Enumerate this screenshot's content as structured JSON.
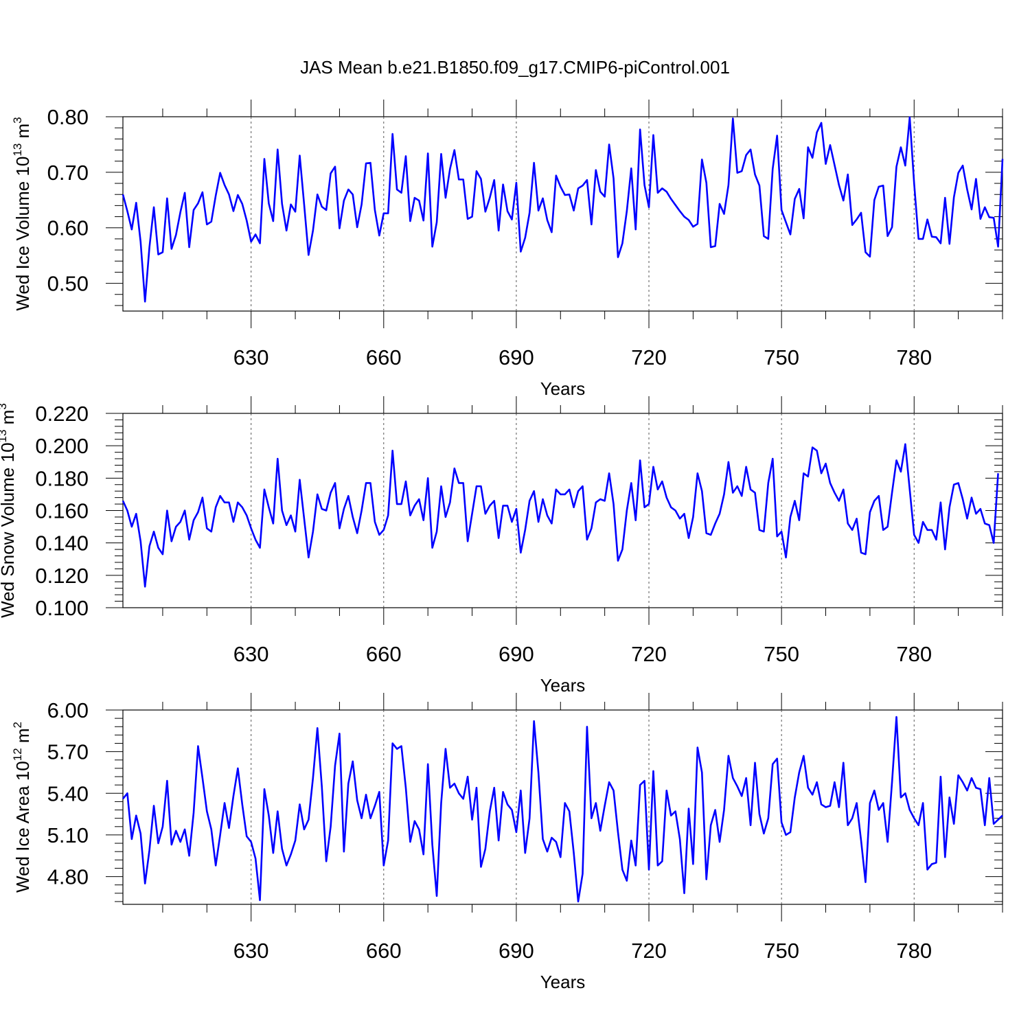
{
  "figure": {
    "title": "JAS Mean b.e21.B1850.f09_g17.CMIP6-piControl.001"
  },
  "chart_data": [
    {
      "type": "line",
      "ylabel": "Wed Ice Volume 10",
      "ylabel_exp": "13",
      "ylabel_unit": " m",
      "ylabel_unit_exp": "3",
      "xlabel": "Years",
      "xlim": [
        601,
        800
      ],
      "ylim": [
        0.45,
        0.8
      ],
      "yticks": [
        "0.50",
        "0.60",
        "0.70",
        "0.80"
      ],
      "ytick_values": [
        0.5,
        0.6,
        0.7,
        0.8
      ],
      "xticks": [
        "630",
        "660",
        "690",
        "720",
        "750",
        "780"
      ],
      "xtick_values": [
        630,
        660,
        690,
        720,
        750,
        780
      ],
      "grid": "vertical dashed lines at major x ticks",
      "line_color": "#0000ff",
      "x_start": 601,
      "values": [
        0.66,
        0.63,
        0.597,
        0.645,
        0.575,
        0.467,
        0.565,
        0.637,
        0.552,
        0.556,
        0.653,
        0.562,
        0.587,
        0.628,
        0.663,
        0.565,
        0.632,
        0.644,
        0.664,
        0.606,
        0.611,
        0.658,
        0.699,
        0.677,
        0.66,
        0.63,
        0.659,
        0.643,
        0.613,
        0.575,
        0.588,
        0.572,
        0.724,
        0.644,
        0.612,
        0.741,
        0.643,
        0.595,
        0.642,
        0.629,
        0.73,
        0.642,
        0.551,
        0.595,
        0.66,
        0.638,
        0.632,
        0.698,
        0.71,
        0.599,
        0.649,
        0.669,
        0.66,
        0.601,
        0.642,
        0.716,
        0.717,
        0.632,
        0.586,
        0.626,
        0.626,
        0.769,
        0.669,
        0.663,
        0.729,
        0.612,
        0.654,
        0.649,
        0.613,
        0.734,
        0.566,
        0.61,
        0.733,
        0.654,
        0.706,
        0.74,
        0.687,
        0.687,
        0.616,
        0.62,
        0.702,
        0.688,
        0.629,
        0.654,
        0.686,
        0.595,
        0.678,
        0.63,
        0.615,
        0.681,
        0.557,
        0.582,
        0.627,
        0.717,
        0.631,
        0.653,
        0.614,
        0.592,
        0.694,
        0.674,
        0.659,
        0.66,
        0.631,
        0.671,
        0.676,
        0.686,
        0.606,
        0.704,
        0.665,
        0.656,
        0.75,
        0.689,
        0.547,
        0.572,
        0.63,
        0.707,
        0.597,
        0.777,
        0.677,
        0.637,
        0.767,
        0.663,
        0.671,
        0.665,
        0.652,
        0.641,
        0.63,
        0.62,
        0.614,
        0.602,
        0.607,
        0.723,
        0.681,
        0.565,
        0.567,
        0.643,
        0.625,
        0.677,
        0.797,
        0.699,
        0.702,
        0.731,
        0.741,
        0.696,
        0.676,
        0.585,
        0.58,
        0.706,
        0.766,
        0.632,
        0.61,
        0.588,
        0.652,
        0.67,
        0.617,
        0.745,
        0.726,
        0.772,
        0.789,
        0.715,
        0.749,
        0.713,
        0.677,
        0.649,
        0.696,
        0.605,
        0.615,
        0.627,
        0.556,
        0.548,
        0.65,
        0.674,
        0.676,
        0.585,
        0.601,
        0.71,
        0.745,
        0.712,
        0.799,
        0.68,
        0.58,
        0.58,
        0.615,
        0.584,
        0.583,
        0.572,
        0.654,
        0.571,
        0.655,
        0.699,
        0.712,
        0.669,
        0.633,
        0.688,
        0.616,
        0.637,
        0.619,
        0.618,
        0.566,
        0.724
      ]
    },
    {
      "type": "line",
      "ylabel": "Wed Snow Volume 10",
      "ylabel_exp": "13",
      "ylabel_unit": " m",
      "ylabel_unit_exp": "3",
      "xlabel": "Years",
      "xlim": [
        601,
        800
      ],
      "ylim": [
        0.1,
        0.22
      ],
      "yticks": [
        "0.100",
        "0.120",
        "0.140",
        "0.160",
        "0.180",
        "0.200",
        "0.220"
      ],
      "ytick_values": [
        0.1,
        0.12,
        0.14,
        0.16,
        0.18,
        0.2,
        0.22
      ],
      "xticks": [
        "630",
        "660",
        "690",
        "720",
        "750",
        "780"
      ],
      "xtick_values": [
        630,
        660,
        690,
        720,
        750,
        780
      ],
      "grid": "vertical dashed lines at major x ticks",
      "line_color": "#0000ff",
      "x_start": 601,
      "values": [
        0.166,
        0.16,
        0.15,
        0.158,
        0.141,
        0.113,
        0.138,
        0.147,
        0.137,
        0.133,
        0.16,
        0.141,
        0.15,
        0.153,
        0.16,
        0.142,
        0.154,
        0.159,
        0.168,
        0.149,
        0.147,
        0.162,
        0.169,
        0.165,
        0.165,
        0.153,
        0.165,
        0.162,
        0.157,
        0.149,
        0.142,
        0.137,
        0.173,
        0.162,
        0.152,
        0.192,
        0.16,
        0.151,
        0.157,
        0.147,
        0.179,
        0.155,
        0.131,
        0.147,
        0.17,
        0.161,
        0.16,
        0.171,
        0.177,
        0.149,
        0.161,
        0.169,
        0.156,
        0.146,
        0.16,
        0.177,
        0.177,
        0.153,
        0.145,
        0.148,
        0.157,
        0.197,
        0.164,
        0.164,
        0.178,
        0.157,
        0.163,
        0.167,
        0.154,
        0.18,
        0.137,
        0.147,
        0.175,
        0.156,
        0.165,
        0.186,
        0.177,
        0.177,
        0.141,
        0.158,
        0.175,
        0.175,
        0.158,
        0.163,
        0.166,
        0.143,
        0.163,
        0.163,
        0.153,
        0.161,
        0.134,
        0.148,
        0.166,
        0.172,
        0.153,
        0.167,
        0.157,
        0.152,
        0.173,
        0.17,
        0.17,
        0.173,
        0.162,
        0.172,
        0.175,
        0.142,
        0.149,
        0.165,
        0.167,
        0.166,
        0.183,
        0.164,
        0.129,
        0.136,
        0.16,
        0.177,
        0.154,
        0.191,
        0.162,
        0.164,
        0.187,
        0.173,
        0.178,
        0.168,
        0.162,
        0.16,
        0.155,
        0.158,
        0.143,
        0.156,
        0.183,
        0.172,
        0.146,
        0.145,
        0.152,
        0.158,
        0.17,
        0.19,
        0.171,
        0.175,
        0.169,
        0.187,
        0.173,
        0.171,
        0.148,
        0.147,
        0.177,
        0.192,
        0.144,
        0.147,
        0.131,
        0.156,
        0.166,
        0.154,
        0.183,
        0.181,
        0.199,
        0.197,
        0.183,
        0.189,
        0.177,
        0.171,
        0.166,
        0.173,
        0.152,
        0.148,
        0.155,
        0.134,
        0.133,
        0.159,
        0.166,
        0.169,
        0.148,
        0.15,
        0.171,
        0.191,
        0.184,
        0.201,
        0.173,
        0.145,
        0.14,
        0.153,
        0.148,
        0.148,
        0.142,
        0.165,
        0.136,
        0.162,
        0.176,
        0.177,
        0.167,
        0.155,
        0.168,
        0.158,
        0.161,
        0.152,
        0.151,
        0.14,
        0.183
      ]
    },
    {
      "type": "line",
      "ylabel": "Wed Ice Area 10",
      "ylabel_exp": "12",
      "ylabel_unit": " m",
      "ylabel_unit_exp": "2",
      "xlabel": "Years",
      "xlim": [
        601,
        800
      ],
      "ylim": [
        4.6,
        6.0
      ],
      "yticks": [
        "4.80",
        "5.10",
        "5.40",
        "5.70",
        "6.00"
      ],
      "ytick_values": [
        4.8,
        5.1,
        5.4,
        5.7,
        6.0
      ],
      "xticks": [
        "630",
        "660",
        "690",
        "720",
        "750",
        "780"
      ],
      "xtick_values": [
        630,
        660,
        690,
        720,
        750,
        780
      ],
      "grid": "vertical dashed lines at major x ticks",
      "line_color": "#0000ff",
      "x_start": 601,
      "values": [
        5.36,
        5.4,
        5.07,
        5.24,
        5.11,
        4.75,
        4.99,
        5.31,
        5.04,
        5.16,
        5.49,
        5.03,
        5.13,
        5.05,
        5.14,
        4.95,
        5.26,
        5.74,
        5.51,
        5.27,
        5.14,
        4.88,
        5.1,
        5.33,
        5.15,
        5.38,
        5.58,
        5.32,
        5.09,
        5.05,
        4.93,
        4.63,
        5.43,
        5.24,
        4.97,
        5.27,
        5.0,
        4.88,
        4.96,
        5.06,
        5.32,
        5.14,
        5.21,
        5.51,
        5.87,
        5.45,
        4.91,
        5.16,
        5.6,
        5.83,
        4.98,
        5.47,
        5.63,
        5.35,
        5.22,
        5.39,
        5.22,
        5.31,
        5.41,
        4.88,
        5.06,
        5.76,
        5.72,
        5.74,
        5.44,
        5.05,
        5.2,
        5.14,
        4.96,
        5.61,
        5.03,
        4.66,
        5.33,
        5.72,
        5.44,
        5.47,
        5.4,
        5.36,
        5.52,
        5.21,
        5.44,
        4.87,
        5.0,
        5.27,
        5.44,
        5.06,
        5.41,
        5.32,
        5.28,
        5.12,
        5.42,
        4.97,
        5.22,
        5.92,
        5.55,
        5.07,
        4.98,
        5.08,
        5.05,
        4.94,
        5.33,
        5.27,
        4.97,
        4.62,
        4.82,
        5.88,
        5.22,
        5.33,
        5.13,
        5.31,
        5.48,
        5.42,
        5.12,
        4.85,
        4.77,
        5.06,
        4.88,
        5.46,
        5.49,
        4.85,
        5.56,
        4.88,
        4.91,
        5.42,
        5.24,
        5.27,
        5.07,
        4.68,
        5.29,
        4.89,
        5.73,
        5.55,
        4.78,
        5.17,
        5.28,
        5.05,
        5.28,
        5.67,
        5.51,
        5.45,
        5.38,
        5.51,
        5.17,
        5.62,
        5.25,
        5.11,
        5.22,
        5.61,
        5.65,
        5.19,
        5.1,
        5.12,
        5.37,
        5.55,
        5.67,
        5.44,
        5.39,
        5.48,
        5.32,
        5.3,
        5.31,
        5.48,
        5.3,
        5.62,
        5.17,
        5.22,
        5.33,
        5.06,
        4.76,
        5.33,
        5.42,
        5.28,
        5.33,
        5.05,
        5.48,
        5.95,
        5.37,
        5.4,
        5.28,
        5.22,
        5.17,
        5.33,
        4.85,
        4.89,
        4.9,
        5.52,
        4.94,
        5.37,
        5.18,
        5.53,
        5.48,
        5.42,
        5.51,
        5.44,
        5.43,
        5.17,
        5.51,
        5.18,
        5.21,
        5.24
      ]
    }
  ]
}
